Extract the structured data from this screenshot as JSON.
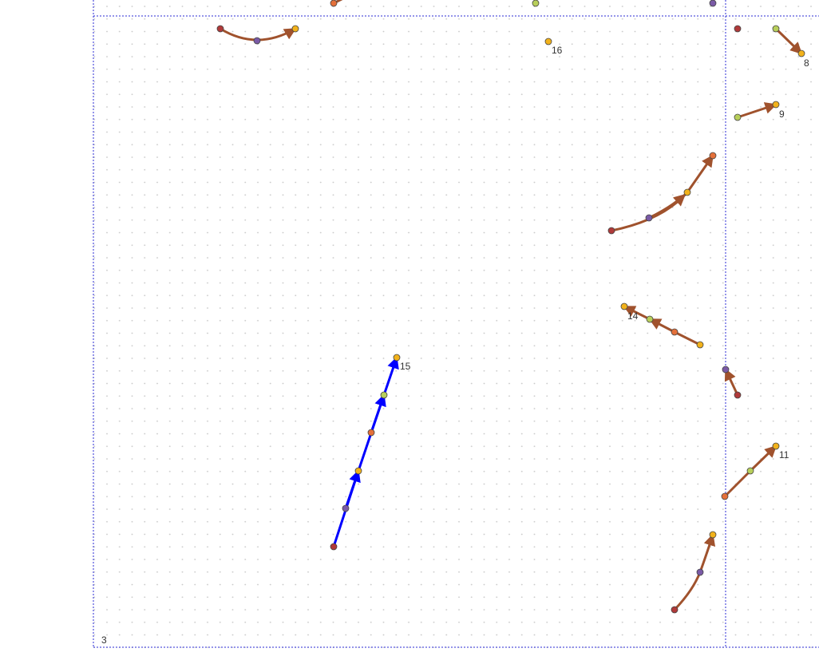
{
  "region_label": "3",
  "colors": {
    "frame": "#2b2bd6",
    "grid_dot": "#c8c8c8",
    "brown_arrow": "#a0522d",
    "blue_arrow": "#0000ff",
    "node_red": "#b03a3a",
    "node_orange": "#e4703a",
    "node_yellow": "#f2b21b",
    "node_green": "#b8cf5a",
    "node_purple": "#7a5aa6"
  },
  "edge_labels": [
    {
      "id": "16",
      "text": "16"
    },
    {
      "id": "8",
      "text": "8"
    },
    {
      "id": "9",
      "text": "9"
    },
    {
      "id": "14",
      "text": "14"
    },
    {
      "id": "15",
      "text": "15"
    },
    {
      "id": "11",
      "text": "11"
    }
  ]
}
